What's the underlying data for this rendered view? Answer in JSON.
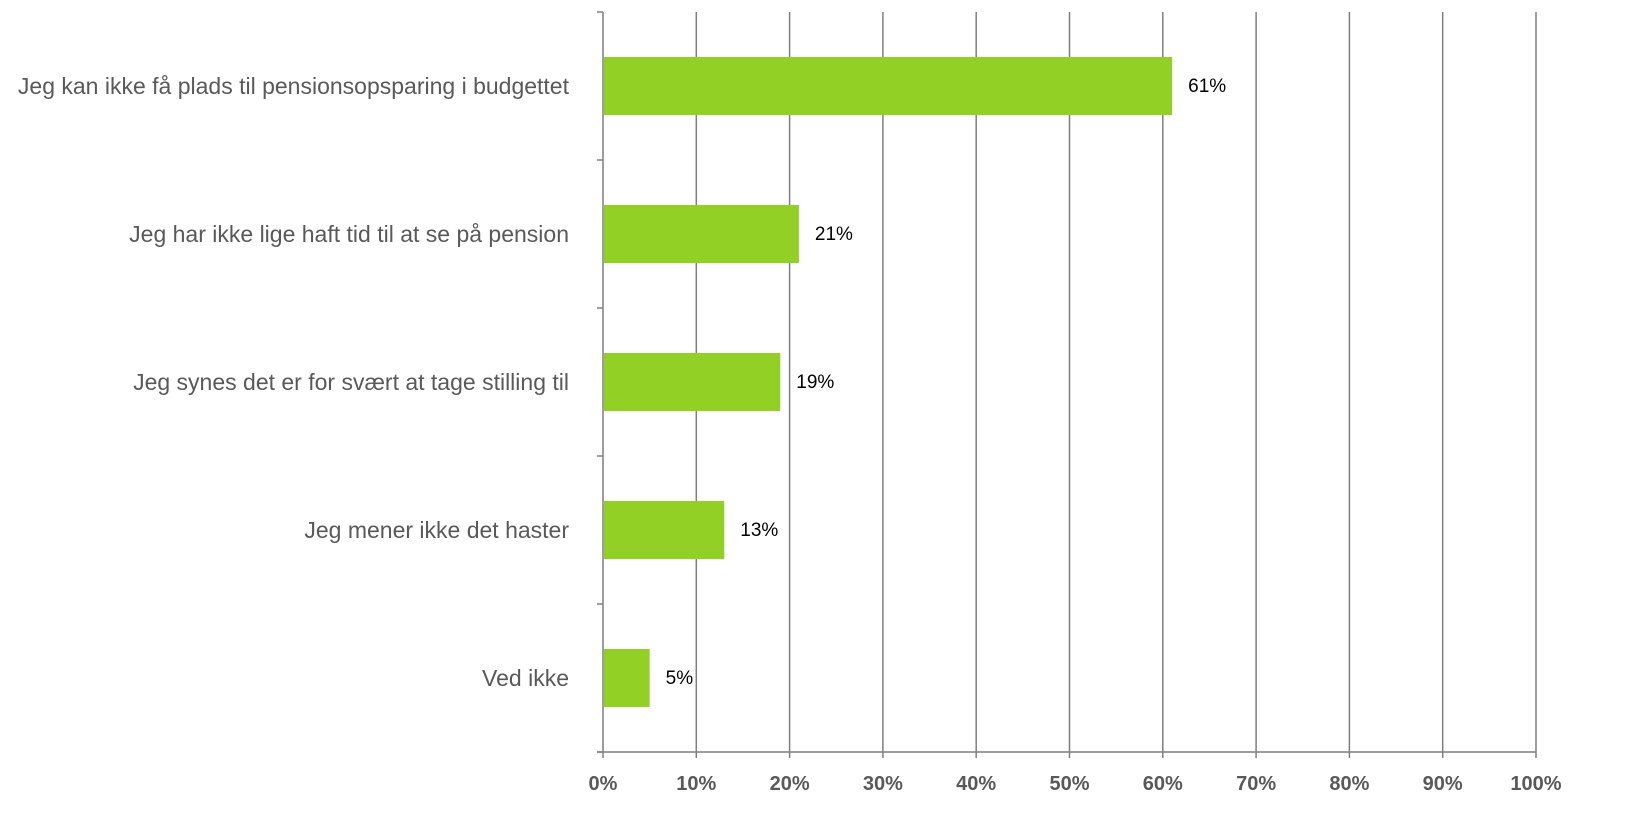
{
  "colors": {
    "bar": "#92d025",
    "gridline": "#7f7f7f",
    "axis": "#7f7f7f",
    "category_text": "#595959",
    "tick_text": "#595959",
    "data_label_text": "#000000"
  },
  "chart_data": {
    "type": "bar",
    "orientation": "horizontal",
    "categories": [
      "Jeg kan ikke få plads til pensionsopsparing i budgettet",
      "Jeg har ikke lige haft tid til at se på pension",
      "Jeg synes det er for svært at tage stilling til",
      "Jeg mener ikke det haster",
      "Ved ikke"
    ],
    "values": [
      61,
      21,
      19,
      13,
      5
    ],
    "data_labels": [
      "61%",
      "21%",
      "19%",
      "13%",
      "5%"
    ],
    "xlim": [
      0,
      100
    ],
    "x_ticks": [
      0,
      10,
      20,
      30,
      40,
      50,
      60,
      70,
      80,
      90,
      100
    ],
    "x_tick_labels": [
      "0%",
      "10%",
      "20%",
      "30%",
      "40%",
      "50%",
      "60%",
      "70%",
      "80%",
      "90%",
      "100%"
    ],
    "title": "",
    "xlabel": "",
    "ylabel": "",
    "grid": "vertical",
    "legend": "none"
  }
}
